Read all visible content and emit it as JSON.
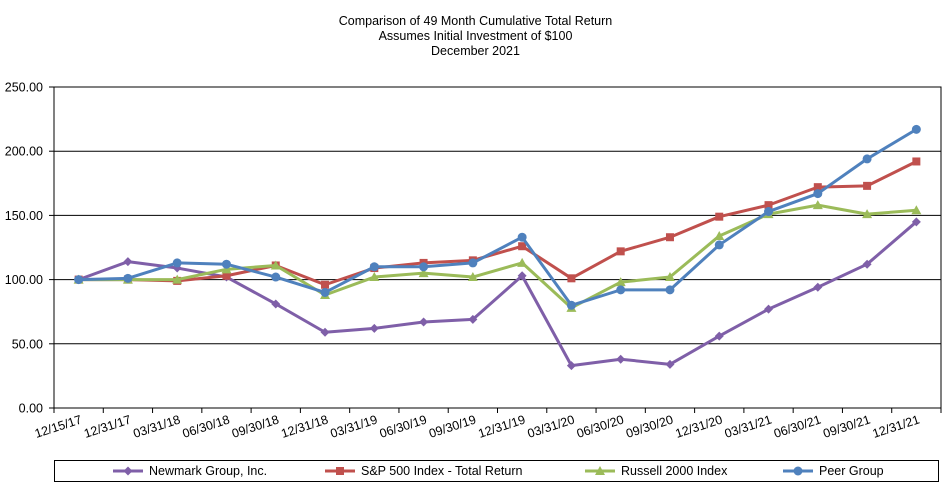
{
  "chart_data": {
    "type": "line",
    "title": "Comparison of 49 Month Cumulative Total Return",
    "subtitle1": "Assumes Initial Investment of $100",
    "subtitle2": "December 2021",
    "xlabel": "",
    "ylabel": "",
    "ylim": [
      0,
      250
    ],
    "yticks": [
      "0.00",
      "50.00",
      "100.00",
      "150.00",
      "200.00",
      "250.00"
    ],
    "ytick_values": [
      0,
      50,
      100,
      150,
      200,
      250
    ],
    "grid": true,
    "legend_position": "bottom",
    "categories": [
      "12/15/17",
      "12/31/17",
      "03/31/18",
      "06/30/18",
      "09/30/18",
      "12/31/18",
      "03/31/19",
      "06/30/19",
      "09/30/19",
      "12/31/19",
      "03/31/20",
      "06/30/20",
      "09/30/20",
      "12/31/20",
      "03/31/21",
      "06/30/21",
      "09/30/21",
      "12/31/21"
    ],
    "series": [
      {
        "name": "Newmark Group, Inc.",
        "color": "#7F5FA8",
        "marker": "diamond",
        "values": [
          100,
          114,
          109,
          102,
          81,
          59,
          62,
          67,
          69,
          103,
          33,
          38,
          34,
          56,
          77,
          94,
          112,
          145
        ]
      },
      {
        "name": "S&P 500 Index - Total Return",
        "color": "#C0504D",
        "marker": "square",
        "values": [
          100,
          100,
          99,
          103,
          111,
          96,
          109,
          113,
          115,
          126,
          101,
          122,
          133,
          149,
          158,
          172,
          173,
          192
        ]
      },
      {
        "name": "Russell 2000 Index",
        "color": "#9BBB59",
        "marker": "triangle",
        "values": [
          100,
          100,
          100,
          108,
          111,
          88,
          102,
          105,
          102,
          113,
          78,
          98,
          102,
          134,
          151,
          158,
          151,
          154
        ]
      },
      {
        "name": "Peer Group",
        "color": "#4F81BD",
        "marker": "circle",
        "values": [
          100,
          101,
          113,
          112,
          102,
          90,
          110,
          110,
          113,
          133,
          80,
          92,
          92,
          127,
          153,
          167,
          194,
          217
        ]
      }
    ]
  }
}
